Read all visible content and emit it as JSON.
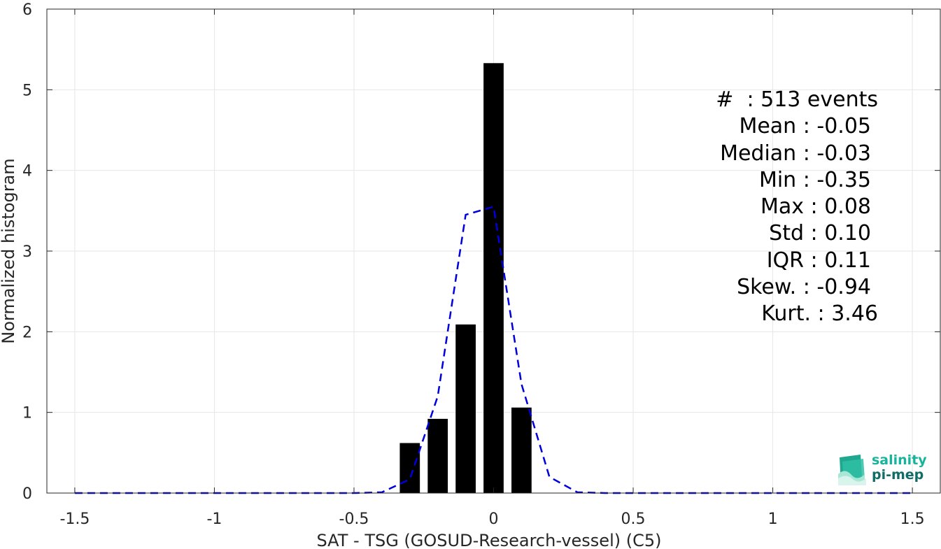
{
  "chart_data": {
    "type": "bar",
    "xlabel": "SAT - TSG (GOSUD-Research-vessel) (C5)",
    "ylabel": "Normalized histogram",
    "xlim": [
      -1.6,
      1.6
    ],
    "ylim": [
      0,
      6
    ],
    "xticks": [
      -1.5,
      -1,
      -0.5,
      0,
      0.5,
      1,
      1.5
    ],
    "xtick_labels": [
      "-1.5",
      "-1",
      "-0.5",
      "0",
      "0.5",
      "1",
      "1.5"
    ],
    "yticks": [
      0,
      1,
      2,
      3,
      4,
      5,
      6
    ],
    "ytick_labels": [
      "0",
      "1",
      "2",
      "3",
      "4",
      "5",
      "6"
    ],
    "grid": true,
    "bars": {
      "centers": [
        -0.3,
        -0.2,
        -0.1,
        0.0,
        0.1
      ],
      "width": 0.072,
      "values": [
        0.62,
        0.92,
        2.09,
        5.33,
        1.06
      ],
      "color": "#000000"
    },
    "fit_curve": {
      "type": "line",
      "style": "dashed",
      "color": "#0000dd",
      "x": [
        -1.5,
        -1.4,
        -1.3,
        -1.2,
        -1.1,
        -1.0,
        -0.9,
        -0.8,
        -0.7,
        -0.6,
        -0.5,
        -0.4,
        -0.3,
        -0.2,
        -0.1,
        0.0,
        0.1,
        0.2,
        0.3,
        0.4,
        0.5,
        0.6,
        0.7,
        0.8,
        0.9,
        1.0,
        1.1,
        1.2,
        1.3,
        1.4,
        1.5
      ],
      "y": [
        0,
        0,
        0,
        0,
        0,
        0,
        0,
        0,
        0,
        0,
        0,
        0.01,
        0.17,
        1.2,
        3.45,
        3.55,
        1.35,
        0.2,
        0.01,
        0,
        0,
        0,
        0,
        0,
        0,
        0,
        0,
        0,
        0,
        0,
        0
      ]
    }
  },
  "stats": [
    {
      "label": "#  : 513 events",
      "indent": false
    },
    {
      "label": "Mean : -0.05",
      "indent": true
    },
    {
      "label": "Median : -0.03",
      "indent": true
    },
    {
      "label": "Min : -0.35",
      "indent": true
    },
    {
      "label": "Max : 0.08",
      "indent": true
    },
    {
      "label": "Std : 0.10",
      "indent": true
    },
    {
      "label": "IQR : 0.11",
      "indent": true
    },
    {
      "label": "Skew. : -0.94",
      "indent": true
    },
    {
      "label": "Kurt. : 3.46",
      "indent": false
    }
  ],
  "logo": {
    "line1": "salinity",
    "line2": "pi-mep",
    "color1": "#17b39a",
    "color2": "#0f6f66"
  }
}
